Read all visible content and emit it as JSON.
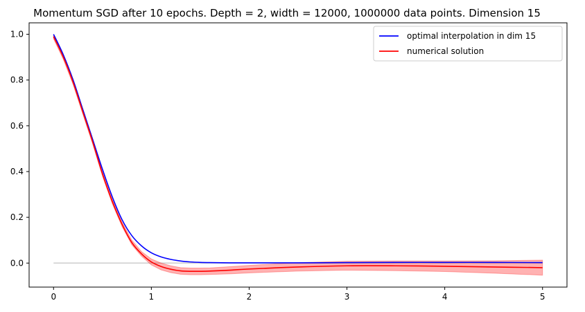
{
  "chart_data": {
    "type": "line",
    "title": "Momentum SGD after 10 epochs. Depth = 2, width = 12000, 1000000 data points. Dimension 15",
    "xlabel": "",
    "ylabel": "",
    "xlim": [
      -0.25,
      5.25
    ],
    "ylim": [
      -0.105,
      1.05
    ],
    "xticks": [
      0,
      1,
      2,
      3,
      4,
      5
    ],
    "xtick_labels": [
      "0",
      "1",
      "2",
      "3",
      "4",
      "5"
    ],
    "yticks": [
      0.0,
      0.2,
      0.4,
      0.6,
      0.8,
      1.0
    ],
    "ytick_labels": [
      "0.0",
      "0.2",
      "0.4",
      "0.6",
      "0.8",
      "1.0"
    ],
    "grid": false,
    "legend_position": "top-right",
    "zero_line": {
      "x": [
        0,
        5
      ],
      "y": 0.0,
      "color": "#cccccc"
    },
    "series": [
      {
        "name": "optimal interpolation in dim 15",
        "color": "#0000ff",
        "x": [
          0,
          0.1,
          0.2,
          0.3,
          0.4,
          0.5,
          0.6,
          0.7,
          0.8,
          0.9,
          1.0,
          1.1,
          1.2,
          1.3,
          1.4,
          1.5,
          1.6,
          1.8,
          2.0,
          2.5,
          3.0,
          3.5,
          4.0,
          4.5,
          5.0
        ],
        "y": [
          1.0,
          0.91,
          0.8,
          0.67,
          0.54,
          0.41,
          0.29,
          0.19,
          0.12,
          0.075,
          0.045,
          0.027,
          0.016,
          0.009,
          0.005,
          0.003,
          0.002,
          0.001,
          0.001,
          0.001,
          0.002,
          0.003,
          0.003,
          0.003,
          0.002
        ]
      },
      {
        "name": "numerical solution",
        "color": "#ff0000",
        "x": [
          0,
          0.1,
          0.2,
          0.3,
          0.4,
          0.5,
          0.6,
          0.7,
          0.8,
          0.9,
          1.0,
          1.1,
          1.2,
          1.3,
          1.4,
          1.5,
          1.6,
          1.8,
          2.0,
          2.5,
          3.0,
          3.5,
          4.0,
          4.5,
          5.0
        ],
        "y": [
          0.99,
          0.9,
          0.79,
          0.66,
          0.53,
          0.39,
          0.27,
          0.17,
          0.09,
          0.04,
          0.005,
          -0.015,
          -0.027,
          -0.034,
          -0.036,
          -0.036,
          -0.035,
          -0.031,
          -0.026,
          -0.017,
          -0.012,
          -0.012,
          -0.014,
          -0.017,
          -0.02
        ],
        "band_lower": [
          0.98,
          0.89,
          0.78,
          0.65,
          0.52,
          0.38,
          0.26,
          0.16,
          0.08,
          0.03,
          -0.008,
          -0.03,
          -0.042,
          -0.049,
          -0.051,
          -0.051,
          -0.05,
          -0.047,
          -0.043,
          -0.035,
          -0.031,
          -0.033,
          -0.037,
          -0.044,
          -0.053
        ],
        "band_upper": [
          1.0,
          0.91,
          0.8,
          0.67,
          0.54,
          0.4,
          0.28,
          0.18,
          0.1,
          0.05,
          0.018,
          0.0,
          -0.012,
          -0.02,
          -0.022,
          -0.022,
          -0.021,
          -0.016,
          -0.01,
          0.002,
          0.008,
          0.009,
          0.009,
          0.01,
          0.013
        ],
        "band_color": "#ff0000",
        "band_opacity": 0.3
      }
    ]
  }
}
